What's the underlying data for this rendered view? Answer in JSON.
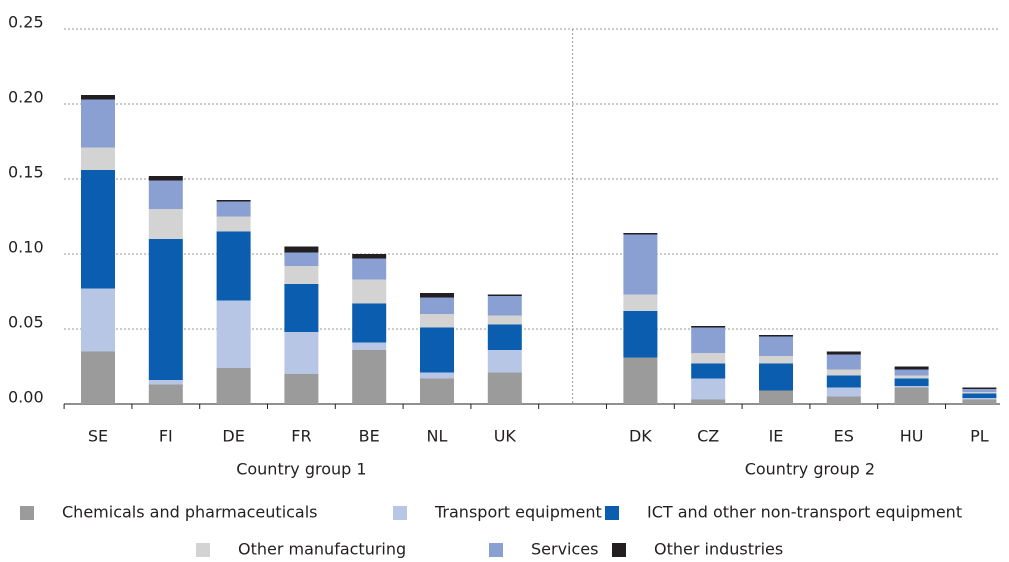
{
  "chart_data": {
    "type": "stacked_bar",
    "categories": [
      "SE",
      "FI",
      "DE",
      "FR",
      "BE",
      "NL",
      "UK",
      null,
      "DK",
      "CZ",
      "IE",
      "ES",
      "HU",
      "PL"
    ],
    "groups": [
      "Country group 1",
      "Country group 2"
    ],
    "series": [
      {
        "name": "Chemicals and pharmaceuticals",
        "color": "#9b9b9b",
        "values": [
          0.035,
          0.013,
          0.024,
          0.02,
          0.036,
          0.017,
          0.021,
          null,
          0.031,
          0.003,
          0.009,
          0.005,
          0.011,
          0.003
        ]
      },
      {
        "name": "Transport equipment",
        "color": "#b8c6e6",
        "values": [
          0.042,
          0.003,
          0.045,
          0.028,
          0.005,
          0.004,
          0.015,
          null,
          0,
          0.014,
          0,
          0.006,
          0.001,
          0.001
        ]
      },
      {
        "name": "ICT and other non-transport equipment",
        "color": "#0b5eaf",
        "values": [
          0.079,
          0.094,
          0.046,
          0.032,
          0.026,
          0.03,
          0.017,
          null,
          0.031,
          0.01,
          0.018,
          0.008,
          0.005,
          0.003
        ]
      },
      {
        "name": "Other manufacturing",
        "color": "#d3d3d3",
        "values": [
          0.015,
          0.02,
          0.01,
          0.012,
          0.016,
          0.009,
          0.006,
          null,
          0.011,
          0.007,
          0.005,
          0.004,
          0.002,
          0.001
        ]
      },
      {
        "name": "Services",
        "color": "#8a9fd2",
        "values": [
          0.032,
          0.019,
          0.01,
          0.009,
          0.014,
          0.011,
          0.013,
          null,
          0.04,
          0.017,
          0.013,
          0.01,
          0.004,
          0.002
        ]
      },
      {
        "name": "Other industries",
        "color": "#231f20",
        "values": [
          0.003,
          0.003,
          0.001,
          0.004,
          0.003,
          0.003,
          0.001,
          null,
          0.001,
          0.001,
          0.001,
          0.002,
          0.002,
          0.001
        ]
      }
    ],
    "ylim": [
      0,
      0.25
    ],
    "yticks": [
      {
        "value": 0,
        "label": "0.00"
      },
      0.05,
      {
        "value": 0.1,
        "label": "0.10"
      },
      0.15,
      {
        "value": 0.2,
        "label": "0.20"
      },
      0.25
    ],
    "grid": true
  }
}
